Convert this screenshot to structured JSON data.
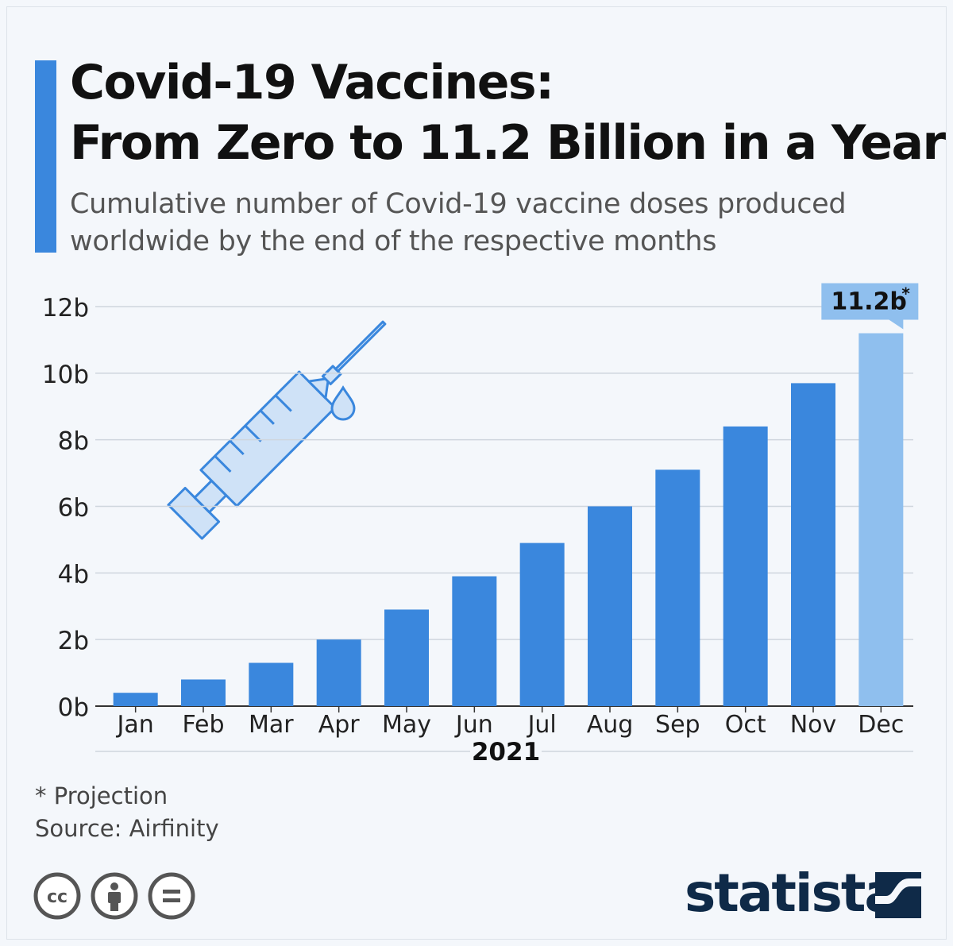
{
  "header": {
    "title_lines": [
      "Covid-19 Vaccines:",
      "From Zero to 11.2 Billion in a Year"
    ],
    "subtitle_lines": [
      "Cumulative number of Covid-19 vaccine doses produced",
      "worldwide by the end of the respective months"
    ]
  },
  "chart_data": {
    "type": "bar",
    "title": "Covid-19 Vaccines: From Zero to 11.2 Billion in a Year",
    "subtitle": "Cumulative number of Covid-19 vaccine doses produced worldwide by the end of the respective months",
    "categories": [
      "Jan",
      "Feb",
      "Mar",
      "Apr",
      "May",
      "Jun",
      "Jul",
      "Aug",
      "Sep",
      "Oct",
      "Nov",
      "Dec"
    ],
    "values": [
      0.4,
      0.8,
      1.3,
      2.0,
      2.9,
      3.9,
      4.9,
      6.0,
      7.1,
      8.4,
      9.7,
      11.2
    ],
    "unit": "billion doses",
    "projected": [
      false,
      false,
      false,
      false,
      false,
      false,
      false,
      false,
      false,
      false,
      false,
      true
    ],
    "xlabel": "2021",
    "ylabel": "",
    "ylim": [
      0,
      12
    ],
    "yticks": [
      0,
      2,
      4,
      6,
      8,
      10,
      12
    ],
    "ytick_labels": [
      "0b",
      "2b",
      "4b",
      "6b",
      "8b",
      "10b",
      "12b"
    ],
    "grid": true,
    "annotation": {
      "category": "Dec",
      "text": "11.2b",
      "marker": "*"
    },
    "colors": {
      "bar": "#3a87dd",
      "projected_bar": "#8fbfee",
      "grid": "#cfd6de",
      "axis": "#333333"
    }
  },
  "footnote": "* Projection",
  "source": "Source: Airfinity",
  "license_icons": [
    "cc-icon",
    "attribution-icon",
    "no-derivatives-icon"
  ],
  "logo": {
    "text": "statista",
    "color": "#0f2a48"
  }
}
